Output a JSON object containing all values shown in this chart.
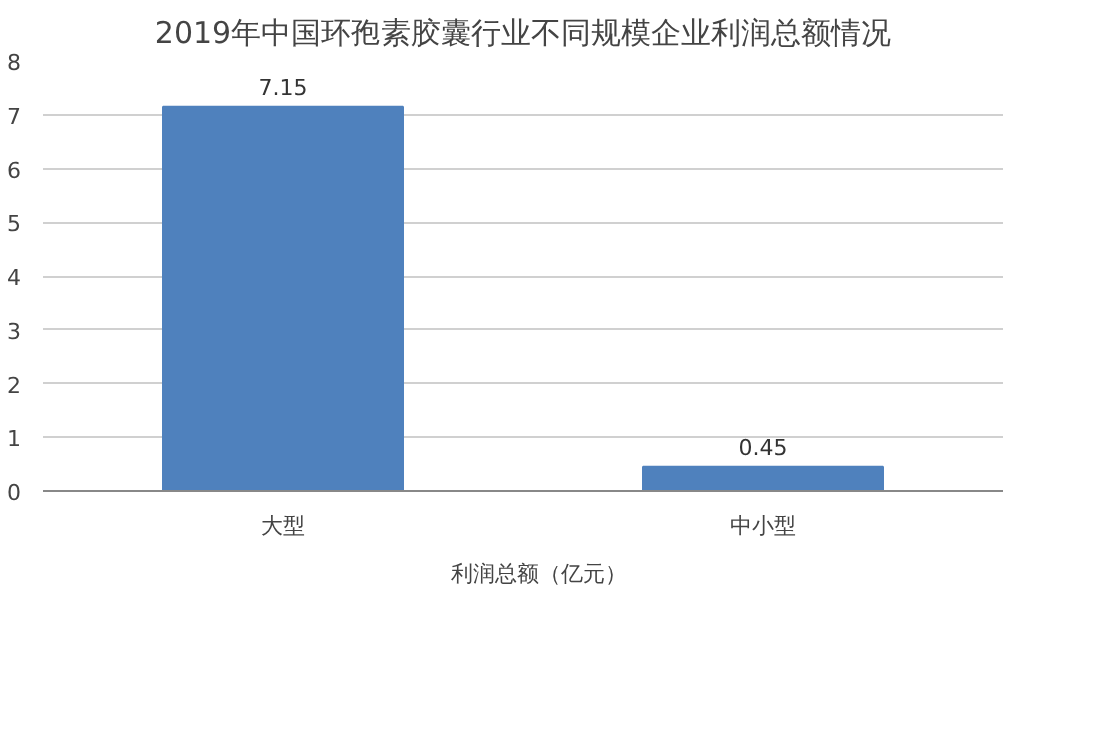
{
  "chart_data": {
    "type": "bar",
    "title": "2019年中国环孢素胶囊行业不同规模企业利润总额情况",
    "categories": [
      "大型",
      "中小型"
    ],
    "series": [
      {
        "name": "利润总额（亿元）",
        "color": "#4f81bd",
        "values": [
          7.15,
          0.45
        ]
      }
    ],
    "ylim": [
      0,
      8
    ],
    "yticks": [
      0,
      1,
      2,
      3,
      4,
      5,
      6,
      7,
      8
    ],
    "grid": "y",
    "legend": "bottom",
    "data_labels": true
  }
}
